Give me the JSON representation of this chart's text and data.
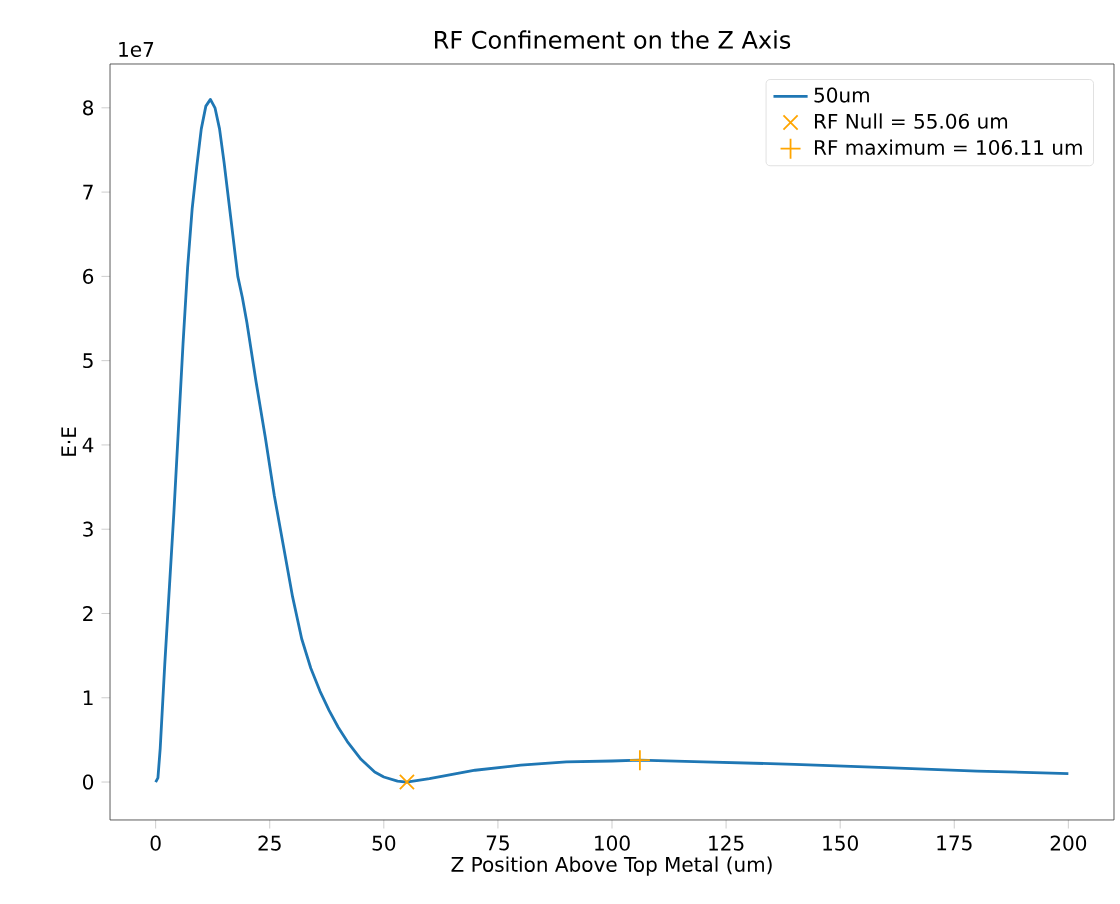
{
  "chart_data": {
    "type": "line",
    "title": "RF Confinement on the Z Axis",
    "xlabel": "Z Position Above Top Metal (um)",
    "ylabel": "E·E",
    "annotations": [
      "1e7"
    ],
    "series": [
      {
        "name": "50um",
        "type": "line",
        "color": "#1f77b4",
        "marker": "none",
        "x": [
          0,
          0.5,
          1,
          2,
          3,
          4,
          5,
          6,
          7,
          8,
          9,
          10,
          11,
          12,
          13,
          14,
          15,
          16,
          17,
          18,
          19,
          20,
          22,
          24,
          26,
          28,
          30,
          32,
          34,
          36,
          38,
          40,
          42,
          45,
          48,
          50,
          53,
          55,
          60,
          70,
          80,
          90,
          100,
          106,
          120,
          140,
          160,
          180,
          200
        ],
        "values": [
          0,
          0.05,
          0.4,
          1.4,
          2.3,
          3.2,
          4.2,
          5.2,
          6.1,
          6.8,
          7.3,
          7.75,
          8.02,
          8.1,
          8.0,
          7.75,
          7.35,
          6.9,
          6.45,
          6.0,
          5.75,
          5.45,
          4.75,
          4.1,
          3.4,
          2.8,
          2.2,
          1.7,
          1.35,
          1.08,
          0.85,
          0.65,
          0.48,
          0.27,
          0.12,
          0.06,
          0.01,
          0.0,
          0.04,
          0.14,
          0.2,
          0.24,
          0.25,
          0.26,
          0.24,
          0.21,
          0.17,
          0.13,
          0.1
        ]
      },
      {
        "name": "RF Null = 55.06 um",
        "type": "scatter",
        "color": "#ffa500",
        "marker": "cross",
        "x": [
          55.06
        ],
        "values": [
          0
        ]
      },
      {
        "name": "RF maximum = 106.11 um",
        "type": "scatter",
        "color": "#ffa500",
        "marker": "plus",
        "x": [
          106.11
        ],
        "values": [
          0.26
        ]
      }
    ],
    "xlim": [
      -10,
      210
    ],
    "ylim": [
      -0.45,
      8.52
    ],
    "xticks": [
      0,
      25,
      50,
      75,
      100,
      125,
      150,
      175,
      200
    ],
    "yticks": [
      0,
      1,
      2,
      3,
      4,
      5,
      6,
      7,
      8
    ],
    "grid": false,
    "legend": "top right"
  }
}
